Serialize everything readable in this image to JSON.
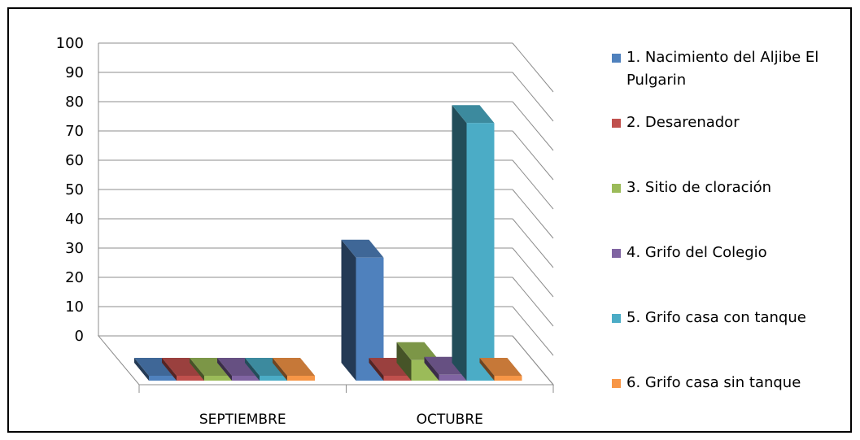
{
  "chart_data": {
    "type": "bar",
    "title": "",
    "xlabel": "",
    "ylabel": "",
    "ylim": [
      0,
      100
    ],
    "yticks": [
      0,
      10,
      20,
      30,
      40,
      50,
      60,
      70,
      80,
      90,
      100
    ],
    "categories": [
      "SEPTIEMBRE",
      "OCTUBRE"
    ],
    "grid": true,
    "three_d": true,
    "legend_position": "right",
    "series": [
      {
        "name": "1. Nacimiento del Aljibe El Pulgarin",
        "color": "#4f81bd",
        "values": [
          0,
          42
        ]
      },
      {
        "name": "2. Desarenador",
        "color": "#c0504d",
        "values": [
          0,
          0
        ]
      },
      {
        "name": "3. Sitio de cloración",
        "color": "#9bbb59",
        "values": [
          0,
          7
        ]
      },
      {
        "name": "4. Grifo del Colegio",
        "color": "#8064a2",
        "values": [
          0,
          2
        ]
      },
      {
        "name": "5. Grifo  casa  con tanque",
        "color": "#4bacc6",
        "values": [
          0,
          88
        ]
      },
      {
        "name": "6. Grifo  casa  sin tanque",
        "color": "#f79646",
        "values": [
          0,
          0
        ]
      }
    ]
  }
}
